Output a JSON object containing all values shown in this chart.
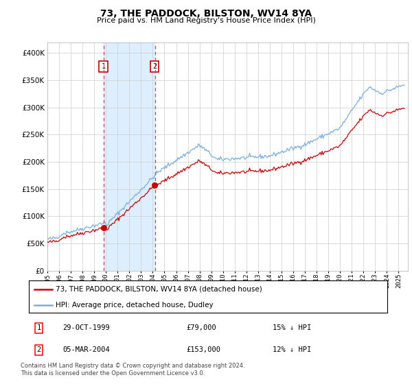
{
  "title": "73, THE PADDOCK, BILSTON, WV14 8YA",
  "subtitle": "Price paid vs. HM Land Registry's House Price Index (HPI)",
  "legend_line1": "73, THE PADDOCK, BILSTON, WV14 8YA (detached house)",
  "legend_line2": "HPI: Average price, detached house, Dudley",
  "sale1_date": "29-OCT-1999",
  "sale1_price": "£79,000",
  "sale1_hpi": "15% ↓ HPI",
  "sale1_year": 1999.83,
  "sale1_value": 79000,
  "sale2_date": "05-MAR-2004",
  "sale2_price": "£153,000",
  "sale2_hpi": "12% ↓ HPI",
  "sale2_year": 2004.2,
  "sale2_value": 153000,
  "footer": "Contains HM Land Registry data © Crown copyright and database right 2024.\nThis data is licensed under the Open Government Licence v3.0.",
  "red_color": "#cc0000",
  "blue_color": "#7aaedc",
  "shaded_color": "#ddeeff",
  "vline_color": "#cc4444",
  "background_color": "#ffffff",
  "grid_color": "#cccccc",
  "ylim_min": 0,
  "ylim_max": 420000,
  "xmin": 1995.0,
  "xmax": 2025.8
}
